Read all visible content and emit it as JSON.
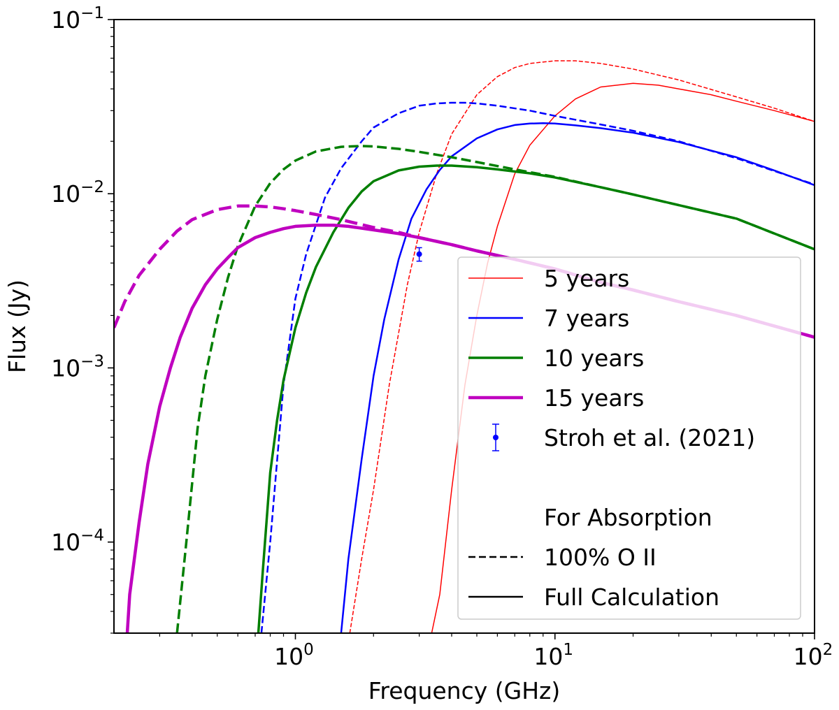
{
  "chart_data": {
    "type": "line",
    "title": "",
    "xlabel": "Frequency (GHz)",
    "ylabel": "Flux (Jy)",
    "xscale": "log",
    "yscale": "log",
    "xlim": [
      0.2,
      100
    ],
    "ylim": [
      3e-05,
      0.1
    ],
    "grid": false,
    "x_ticks": [
      {
        "value": 1,
        "base": "10",
        "exp": "0"
      },
      {
        "value": 10,
        "base": "10",
        "exp": "1"
      },
      {
        "value": 100,
        "base": "10",
        "exp": "2"
      }
    ],
    "y_ticks": [
      {
        "value": 0.0001,
        "base": "10",
        "exp": "−4"
      },
      {
        "value": 0.001,
        "base": "10",
        "exp": "−3"
      },
      {
        "value": 0.01,
        "base": "10",
        "exp": "−2"
      },
      {
        "value": 0.1,
        "base": "10",
        "exp": "−1"
      }
    ],
    "series": [
      {
        "name": "5 years",
        "key": "5-years",
        "calc": "100% O II",
        "style": "dashed",
        "color": "#ff0000",
        "width": 1.5,
        "x": [
          1.62,
          1.8,
          2.0,
          2.3,
          2.7,
          3.0,
          3.5,
          4.0,
          5.0,
          6.0,
          7.0,
          8.0,
          10.0,
          12.0,
          15.0,
          20.0,
          30.0,
          50.0,
          70.0,
          100.0
        ],
        "y": [
          3e-05,
          8e-05,
          0.0002,
          0.0008,
          0.003,
          0.006,
          0.013,
          0.022,
          0.037,
          0.047,
          0.053,
          0.056,
          0.058,
          0.058,
          0.056,
          0.052,
          0.045,
          0.036,
          0.031,
          0.026
        ]
      },
      {
        "name": "5 years",
        "key": "5-years",
        "calc": "Full Calculation",
        "style": "solid",
        "color": "#ff0000",
        "width": 1.5,
        "x": [
          3.35,
          3.6,
          4.0,
          4.5,
          5.0,
          5.5,
          6.0,
          7.0,
          8.0,
          10.0,
          12.0,
          15.0,
          20.0,
          25.0,
          30.0,
          40.0,
          50.0,
          70.0,
          100.0
        ],
        "y": [
          3e-05,
          5e-05,
          0.0002,
          0.0008,
          0.002,
          0.004,
          0.0065,
          0.013,
          0.019,
          0.028,
          0.035,
          0.041,
          0.043,
          0.042,
          0.04,
          0.037,
          0.034,
          0.03,
          0.026
        ]
      },
      {
        "name": "7 years",
        "key": "7-years",
        "calc": "100% O II",
        "style": "dashed",
        "color": "#0000ff",
        "width": 2.5,
        "x": [
          0.74,
          0.8,
          0.9,
          1.0,
          1.1,
          1.3,
          1.5,
          1.8,
          2.0,
          2.5,
          3.0,
          3.5,
          4.0,
          4.5,
          5.0,
          6.0,
          8.0,
          10.0,
          15.0,
          20.0,
          30.0,
          50.0,
          70.0,
          100.0
        ],
        "y": [
          3e-05,
          0.0001,
          0.0008,
          0.0025,
          0.0045,
          0.0095,
          0.014,
          0.02,
          0.024,
          0.029,
          0.032,
          0.033,
          0.0333,
          0.0333,
          0.033,
          0.032,
          0.03,
          0.028,
          0.025,
          0.023,
          0.02,
          0.016,
          0.0135,
          0.0113
        ]
      },
      {
        "name": "7 years",
        "key": "7-years",
        "calc": "Full Calculation",
        "style": "solid",
        "color": "#0000ff",
        "width": 2.5,
        "x": [
          1.5,
          1.6,
          1.8,
          2.0,
          2.2,
          2.5,
          2.8,
          3.2,
          3.6,
          4.0,
          5.0,
          6.0,
          7.0,
          8.0,
          9.0,
          10.0,
          12.0,
          15.0,
          20.0,
          30.0,
          50.0,
          70.0,
          100.0
        ],
        "y": [
          3e-05,
          8e-05,
          0.0003,
          0.0009,
          0.0019,
          0.0042,
          0.0072,
          0.0106,
          0.0137,
          0.0164,
          0.0208,
          0.0234,
          0.0248,
          0.0253,
          0.0254,
          0.0253,
          0.0247,
          0.0238,
          0.0224,
          0.0198,
          0.0162,
          0.0136,
          0.0112
        ]
      },
      {
        "name": "10 years",
        "key": "10-years",
        "calc": "100% O II",
        "style": "dashed",
        "color": "#007f00",
        "width": 3.5,
        "x": [
          0.35,
          0.38,
          0.42,
          0.45,
          0.5,
          0.55,
          0.6,
          0.7,
          0.8,
          0.9,
          1.0,
          1.2,
          1.5,
          1.8,
          2.0,
          2.5,
          3.0,
          4.0,
          5.0,
          7.0,
          10.0,
          15.0,
          20.0,
          30.0,
          50.0,
          100.0
        ],
        "y": [
          3e-05,
          0.0001,
          0.00045,
          0.0009,
          0.0019,
          0.0033,
          0.005,
          0.0085,
          0.0115,
          0.0138,
          0.0155,
          0.0175,
          0.0186,
          0.0188,
          0.0187,
          0.0181,
          0.0174,
          0.0162,
          0.0152,
          0.0138,
          0.0125,
          0.0109,
          0.0099,
          0.0086,
          0.0072,
          0.0048
        ]
      },
      {
        "name": "10 years",
        "key": "10-years",
        "calc": "Full Calculation",
        "style": "solid",
        "color": "#007f00",
        "width": 3.5,
        "x": [
          0.72,
          0.75,
          0.8,
          0.85,
          0.9,
          1.0,
          1.1,
          1.2,
          1.4,
          1.6,
          1.8,
          2.0,
          2.5,
          3.0,
          3.5,
          4.0,
          5.0,
          6.0,
          8.0,
          10.0,
          15.0,
          20.0,
          30.0,
          50.0,
          100.0
        ],
        "y": [
          3e-05,
          7e-05,
          0.00025,
          0.0005,
          0.00085,
          0.0017,
          0.0027,
          0.0038,
          0.006,
          0.0083,
          0.0103,
          0.0118,
          0.0136,
          0.0143,
          0.0145,
          0.0145,
          0.0142,
          0.0138,
          0.0131,
          0.0124,
          0.0109,
          0.0099,
          0.0086,
          0.0072,
          0.0048
        ]
      },
      {
        "name": "15 years",
        "key": "15-years",
        "calc": "100% O II",
        "style": "dashed",
        "color": "#bf00bf",
        "width": 4.5,
        "x": [
          0.2,
          0.22,
          0.25,
          0.3,
          0.35,
          0.4,
          0.5,
          0.6,
          0.7,
          0.8,
          0.9,
          1.0,
          1.2,
          1.5,
          2.0,
          2.5,
          3.0,
          4.0,
          5.0,
          7.0,
          10.0,
          15.0,
          20.0,
          30.0,
          50.0,
          100.0
        ],
        "y": [
          0.0017,
          0.0024,
          0.0034,
          0.0048,
          0.0061,
          0.0071,
          0.0081,
          0.0085,
          0.0085,
          0.0084,
          0.0082,
          0.008,
          0.0076,
          0.0071,
          0.0064,
          0.006,
          0.0056,
          0.0051,
          0.0047,
          0.0042,
          0.0037,
          0.0031,
          0.0028,
          0.0024,
          0.002,
          0.0015
        ]
      },
      {
        "name": "15 years",
        "key": "15-years",
        "calc": "Full Calculation",
        "style": "solid",
        "color": "#bf00bf",
        "width": 4.5,
        "x": [
          0.225,
          0.23,
          0.25,
          0.27,
          0.3,
          0.33,
          0.36,
          0.4,
          0.45,
          0.5,
          0.55,
          0.6,
          0.7,
          0.8,
          0.9,
          1.0,
          1.2,
          1.4,
          1.6,
          2.0,
          2.5,
          3.0,
          4.0,
          5.0,
          7.0,
          10.0,
          15.0,
          20.0,
          30.0,
          50.0,
          100.0
        ],
        "y": [
          3e-05,
          5e-05,
          0.00013,
          0.00028,
          0.0006,
          0.001,
          0.0015,
          0.0022,
          0.003,
          0.0037,
          0.0043,
          0.0049,
          0.0056,
          0.006,
          0.0063,
          0.0065,
          0.0066,
          0.0066,
          0.0065,
          0.0062,
          0.0059,
          0.0056,
          0.0051,
          0.0047,
          0.0042,
          0.0037,
          0.0031,
          0.0028,
          0.0024,
          0.002,
          0.0015
        ]
      }
    ],
    "observations": [
      {
        "label": "Stroh et al. (2021)",
        "x": 3.0,
        "y": 0.0045,
        "err_low": 0.0004,
        "err_high": 0.0004,
        "color": "#0000ff"
      }
    ],
    "legend": {
      "position": "lower-right",
      "entries": [
        {
          "label": "5 years",
          "kind": "line",
          "style": "solid",
          "color": "#ff0000",
          "width": 1.5
        },
        {
          "label": "7 years",
          "kind": "line",
          "style": "solid",
          "color": "#0000ff",
          "width": 2.5
        },
        {
          "label": "10 years",
          "kind": "line",
          "style": "solid",
          "color": "#007f00",
          "width": 3.5
        },
        {
          "label": "15 years",
          "kind": "line",
          "style": "solid",
          "color": "#bf00bf",
          "width": 4.5
        },
        {
          "label": "Stroh et al. (2021)",
          "kind": "errorbar",
          "color": "#0000ff"
        },
        {
          "label": "",
          "kind": "blank"
        },
        {
          "label": "For Absorption",
          "kind": "text"
        },
        {
          "label": "100% O II",
          "kind": "line",
          "style": "dashed",
          "color": "#000000",
          "width": 2.5
        },
        {
          "label": "Full Calculation",
          "kind": "line",
          "style": "solid",
          "color": "#000000",
          "width": 2.5
        }
      ]
    }
  }
}
